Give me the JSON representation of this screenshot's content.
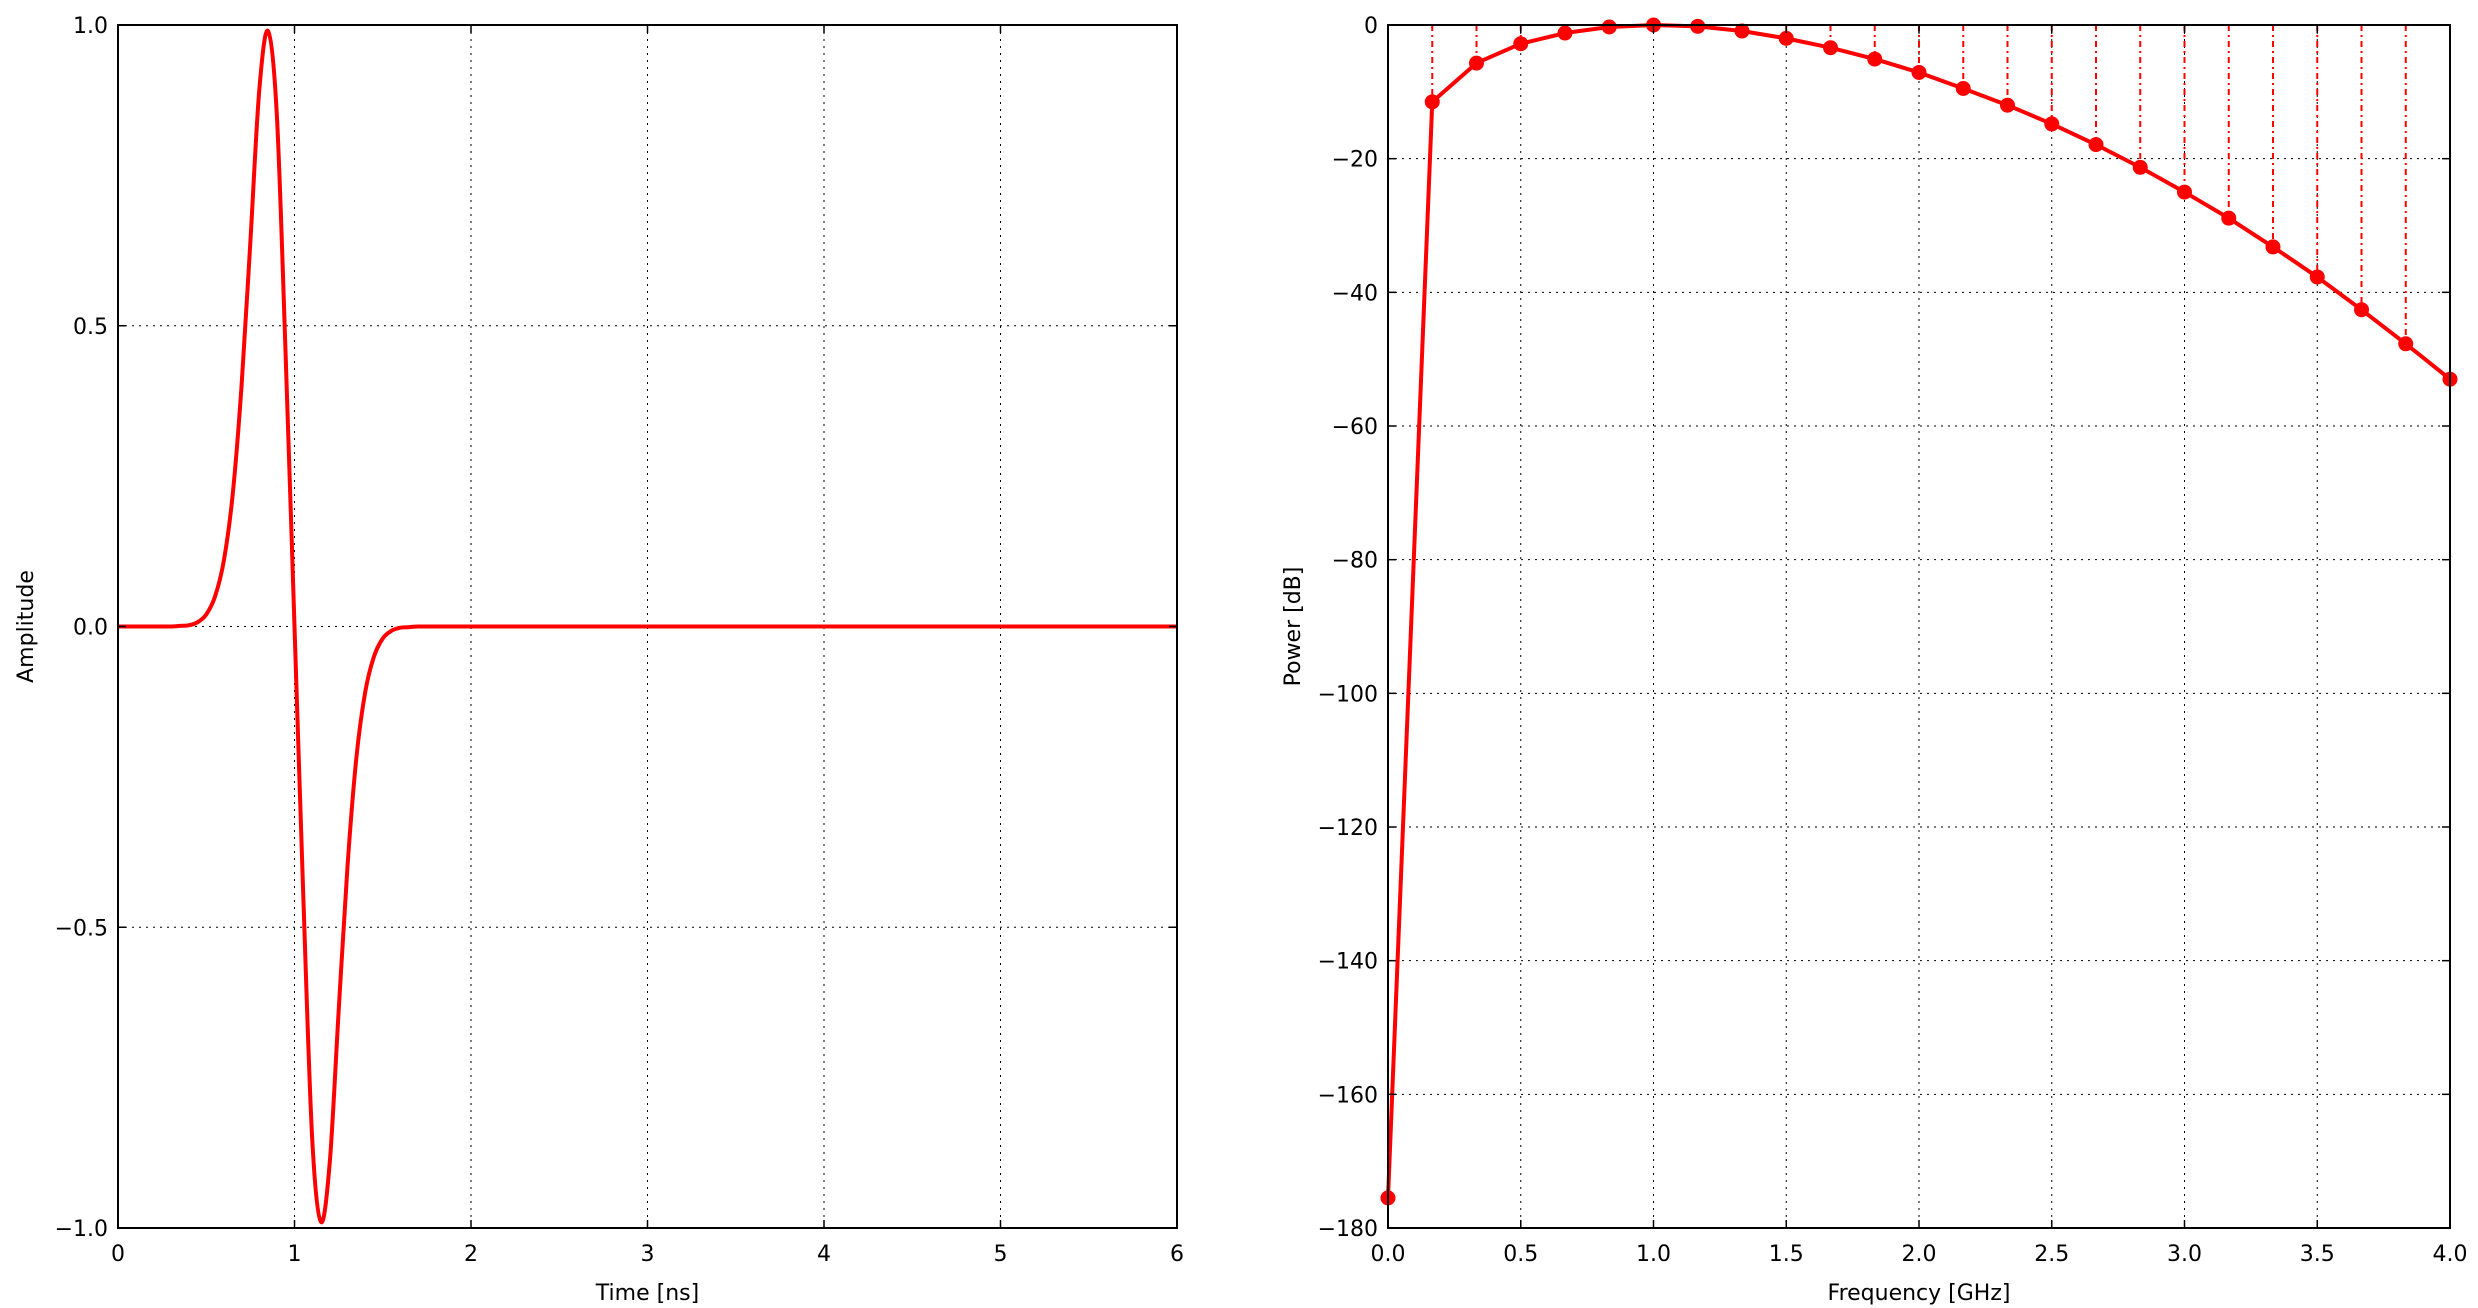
{
  "chart_data": [
    {
      "type": "line",
      "title": "",
      "xlabel": "Time [ns]",
      "ylabel": "Amplitude",
      "xlim": [
        0,
        6
      ],
      "ylim": [
        -1.0,
        1.0
      ],
      "xticks": [
        0,
        1,
        2,
        3,
        4,
        5,
        6
      ],
      "xtick_labels": [
        "0",
        "1",
        "2",
        "3",
        "4",
        "5",
        "6"
      ],
      "yticks": [
        -1.0,
        -0.5,
        0.0,
        0.5,
        1.0
      ],
      "ytick_labels": [
        "−1.0",
        "−0.5",
        "0.0",
        "0.5",
        "1.0"
      ],
      "grid": true,
      "series": [
        {
          "color": "#ff0000",
          "x": [
            0.0,
            0.1,
            0.2,
            0.3,
            0.35,
            0.4,
            0.45,
            0.5,
            0.55,
            0.6,
            0.65,
            0.7,
            0.75,
            0.8,
            0.85,
            0.9,
            0.95,
            1.0,
            1.05,
            1.1,
            1.15,
            1.2,
            1.25,
            1.3,
            1.35,
            1.4,
            1.45,
            1.5,
            1.55,
            1.6,
            1.65,
            1.7,
            1.8,
            2.0,
            3.0,
            4.0,
            5.0,
            6.0
          ],
          "y": [
            0.0,
            0.0,
            0.0,
            0.0,
            0.001,
            0.002,
            0.007,
            0.02,
            0.05,
            0.11,
            0.22,
            0.4,
            0.64,
            0.89,
            0.99,
            0.85,
            0.45,
            0.0,
            -0.45,
            -0.85,
            -0.99,
            -0.89,
            -0.64,
            -0.4,
            -0.22,
            -0.11,
            -0.05,
            -0.02,
            -0.007,
            -0.002,
            -0.001,
            0.0,
            0.0,
            0.0,
            0.0,
            0.0,
            0.0,
            0.0
          ]
        }
      ]
    },
    {
      "type": "line",
      "title": "",
      "xlabel": "Frequency [GHz]",
      "ylabel": "Power [dB]",
      "xlim": [
        0.0,
        4.0
      ],
      "ylim": [
        -180,
        0
      ],
      "xticks": [
        0.0,
        0.5,
        1.0,
        1.5,
        2.0,
        2.5,
        3.0,
        3.5,
        4.0
      ],
      "xtick_labels": [
        "0.0",
        "0.5",
        "1.0",
        "1.5",
        "2.0",
        "2.5",
        "3.0",
        "3.5",
        "4.0"
      ],
      "yticks": [
        -180,
        -160,
        -140,
        -120,
        -100,
        -80,
        -60,
        -40,
        -20,
        0
      ],
      "ytick_labels": [
        "−180",
        "−160",
        "−140",
        "−120",
        "−100",
        "−80",
        "−60",
        "−40",
        "−20",
        "0"
      ],
      "grid": true,
      "series": [
        {
          "color": "#ff0000",
          "markers": true,
          "x": [
            0.0,
            0.1667,
            0.3333,
            0.5,
            0.6667,
            0.8333,
            1.0,
            1.1667,
            1.3333,
            1.5,
            1.6667,
            1.8333,
            2.0,
            2.1667,
            2.3333,
            2.5,
            2.6667,
            2.8333,
            3.0,
            3.1667,
            3.3333,
            3.5,
            3.6667,
            3.8333,
            4.0
          ],
          "y": [
            -175.5,
            -11.5,
            -5.7,
            -2.8,
            -1.2,
            -0.3,
            0.0,
            -0.2,
            -0.9,
            -2.0,
            -3.4,
            -5.1,
            -7.1,
            -9.5,
            -12.0,
            -14.8,
            -17.9,
            -21.3,
            -25.0,
            -28.9,
            -33.2,
            -37.7,
            -42.6,
            -47.7,
            -53.0
          ]
        }
      ]
    }
  ]
}
